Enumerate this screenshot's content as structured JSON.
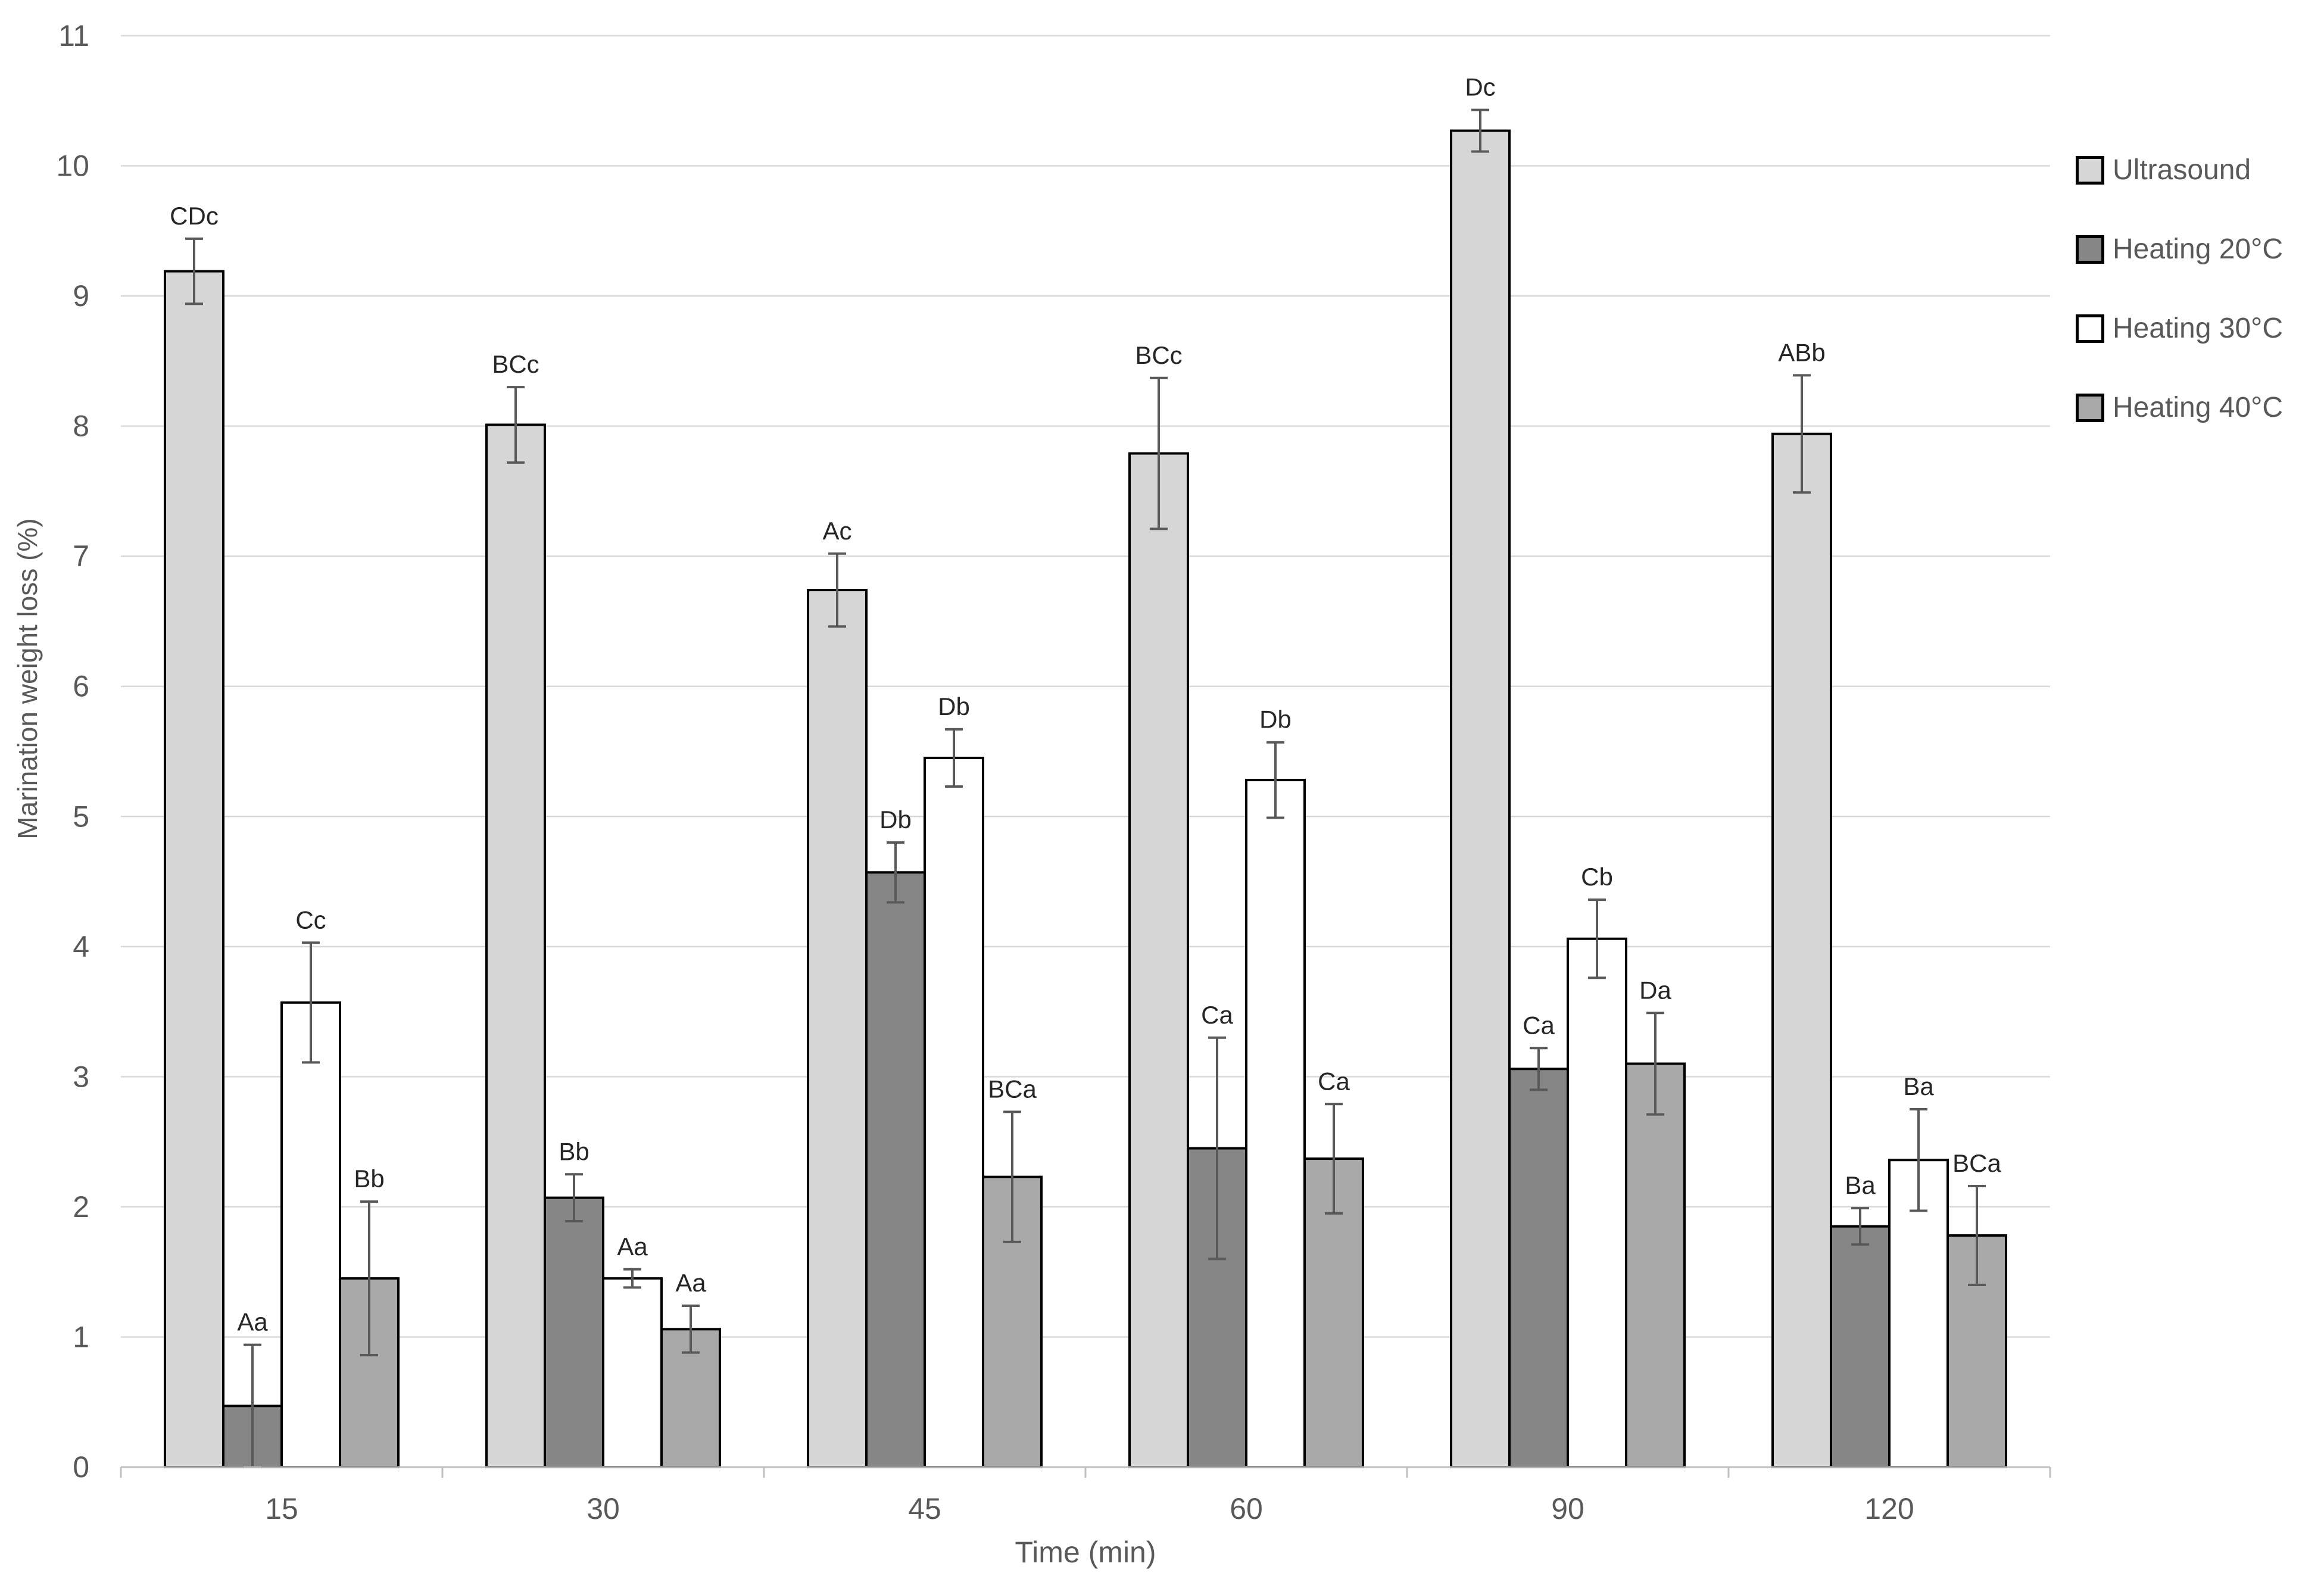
{
  "chart_data": {
    "type": "bar",
    "title": "",
    "xlabel": "Time (min)",
    "ylabel": "Marination weight loss (%)",
    "categories": [
      "15",
      "30",
      "45",
      "60",
      "90",
      "120"
    ],
    "y_ticks": [
      0,
      1,
      2,
      3,
      4,
      5,
      6,
      7,
      8,
      9,
      10,
      11
    ],
    "ylim": [
      0,
      11
    ],
    "grid": "horizontal",
    "legend_position": "right",
    "error_bars": true,
    "series": [
      {
        "name": "Ultrasound",
        "color": "#d6d6d6",
        "values": [
          9.19,
          8.01,
          6.74,
          7.79,
          10.27,
          7.94
        ],
        "errors": [
          0.25,
          0.29,
          0.28,
          0.58,
          0.16,
          0.45
        ],
        "labels": [
          "CDc",
          "BCc",
          "Ac",
          "BCc",
          "Dc",
          "ABb"
        ]
      },
      {
        "name": "Heating 20°C",
        "color": "#868686",
        "values": [
          0.47,
          2.07,
          4.57,
          2.45,
          3.06,
          1.85
        ],
        "errors": [
          0.47,
          0.18,
          0.23,
          0.85,
          0.16,
          0.14
        ],
        "labels": [
          "Aa",
          "Bb",
          "Db",
          "Ca",
          "Ca",
          "Ba"
        ]
      },
      {
        "name": "Heating 30°C",
        "color": "#ffffff",
        "values": [
          3.57,
          1.45,
          5.45,
          5.28,
          4.06,
          2.36
        ],
        "errors": [
          0.46,
          0.07,
          0.22,
          0.29,
          0.3,
          0.39
        ],
        "labels": [
          "Cc",
          "Aa",
          "Db",
          "Db",
          "Cb",
          "Ba"
        ]
      },
      {
        "name": "Heating 40°C",
        "color": "#a9a9a9",
        "values": [
          1.45,
          1.06,
          2.23,
          2.37,
          3.1,
          1.78
        ],
        "errors": [
          0.59,
          0.18,
          0.5,
          0.42,
          0.39,
          0.38
        ],
        "labels": [
          "Bb",
          "Aa",
          "BCa",
          "Ca",
          "Da",
          "BCa"
        ]
      }
    ],
    "colors": {
      "bar_border": "#000000",
      "error_bar": "#595959",
      "gridline": "#d9d9d9",
      "axis_line": "#c0c0c0",
      "tick_text": "#595959",
      "bar_label_text": "#262626",
      "background": "#ffffff"
    }
  }
}
